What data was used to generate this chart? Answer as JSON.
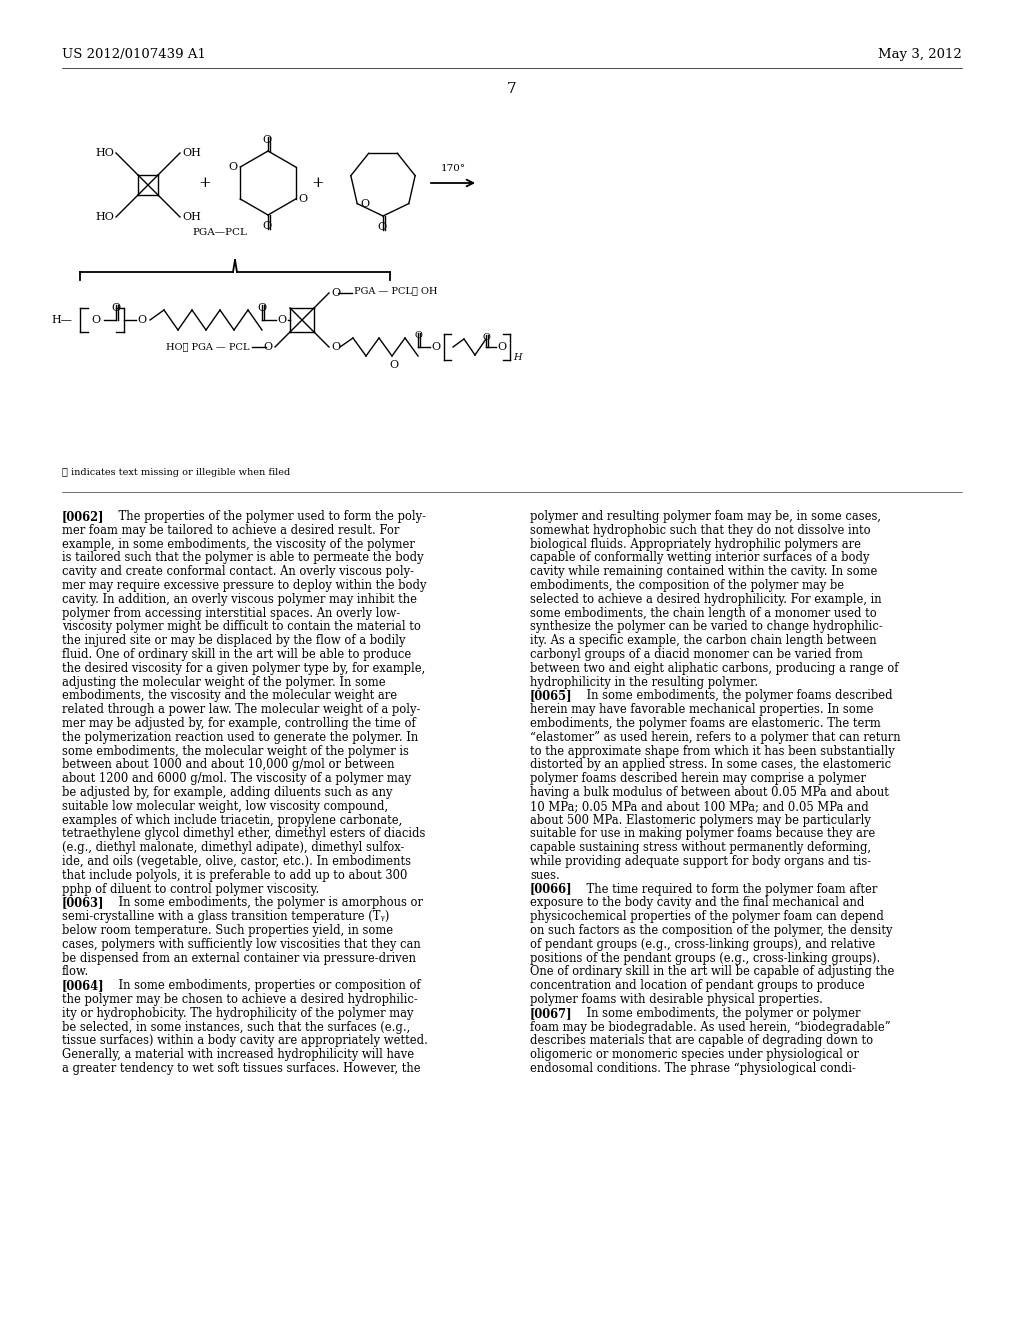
{
  "bg_color": "#ffffff",
  "header_left": "US 2012/0107439 A1",
  "header_right": "May 3, 2012",
  "page_number": "7",
  "left_col_text": "[0062] The properties of the polymer used to form the poly-\nmer foam may be tailored to achieve a desired result. For\nexample, in some embodiments, the viscosity of the polymer\nis tailored such that the polymer is able to permeate the body\ncavity and create conformal contact. An overly viscous poly-\nmer may require excessive pressure to deploy within the body\ncavity. In addition, an overly viscous polymer may inhibit the\npolymer from accessing interstitial spaces. An overly low-\nviscosity polymer might be difficult to contain the material to\nthe injured site or may be displaced by the flow of a bodily\nfluid. One of ordinary skill in the art will be able to produce\nthe desired viscosity for a given polymer type by, for example,\nadjusting the molecular weight of the polymer. In some\nembodiments, the viscosity and the molecular weight are\nrelated through a power law. The molecular weight of a poly-\nmer may be adjusted by, for example, controlling the time of\nthe polymerization reaction used to generate the polymer. In\nsome embodiments, the molecular weight of the polymer is\nbetween about 1000 and about 10,000 g/mol or between\nabout 1200 and 6000 g/mol. The viscosity of a polymer may\nbe adjusted by, for example, adding diluents such as any\nsuitable low molecular weight, low viscosity compound,\nexamples of which include triacetin, propylene carbonate,\ntetraethylene glycol dimethyl ether, dimethyl esters of diacids\n(e.g., diethyl malonate, dimethyl adipate), dimethyl sulfox-\nide, and oils (vegetable, olive, castor, etc.). In embodiments\nthat include polyols, it is preferable to add up to about 300\npphp of diluent to control polymer viscosity.\n[0063] In some embodiments, the polymer is amorphous or\nsemi-crystalline with a glass transition temperature (Tᵧ)\nbelow room temperature. Such properties yield, in some\ncases, polymers with sufficiently low viscosities that they can\nbe dispensed from an external container via pressure-driven\nflow.\n[0064] In some embodiments, properties or composition of\nthe polymer may be chosen to achieve a desired hydrophilic-\nity or hydrophobicity. The hydrophilicity of the polymer may\nbe selected, in some instances, such that the surfaces (e.g.,\ntissue surfaces) within a body cavity are appropriately wetted.\nGenerally, a material with increased hydrophilicity will have\na greater tendency to wet soft tissues surfaces. However, the",
  "right_col_text": "polymer and resulting polymer foam may be, in some cases,\nsomewhat hydrophobic such that they do not dissolve into\nbiological fluids. Appropriately hydrophilic polymers are\ncapable of conformally wetting interior surfaces of a body\ncavity while remaining contained within the cavity. In some\nembodiments, the composition of the polymer may be\nselected to achieve a desired hydrophilicity. For example, in\nsome embodiments, the chain length of a monomer used to\nsynthesize the polymer can be varied to change hydrophilic-\nity. As a specific example, the carbon chain length between\ncarbonyl groups of a diacid monomer can be varied from\nbetween two and eight aliphatic carbons, producing a range of\nhydrophilicity in the resulting polymer.\n[0065] In some embodiments, the polymer foams described\nherein may have favorable mechanical properties. In some\nembodiments, the polymer foams are elastomeric. The term\n“elastomer” as used herein, refers to a polymer that can return\nto the approximate shape from which it has been substantially\ndistorted by an applied stress. In some cases, the elastomeric\npolymer foams described herein may comprise a polymer\nhaving a bulk modulus of between about 0.05 MPa and about\n10 MPa; 0.05 MPa and about 100 MPa; and 0.05 MPa and\nabout 500 MPa. Elastomeric polymers may be particularly\nsuitable for use in making polymer foams because they are\ncapable sustaining stress without permanently deforming,\nwhile providing adequate support for body organs and tis-\nsues.\n[0066] The time required to form the polymer foam after\nexposure to the body cavity and the final mechanical and\nphysicochemical properties of the polymer foam can depend\non such factors as the composition of the polymer, the density\nof pendant groups (e.g., cross-linking groups), and relative\npositions of the pendant groups (e.g., cross-linking groups).\nOne of ordinary skill in the art will be capable of adjusting the\nconcentration and location of pendant groups to produce\npolymer foams with desirable physical properties.\n[0067] In some embodiments, the polymer or polymer\nfoam may be biodegradable. As used herein, “biodegradable”\ndescribes materials that are capable of degrading down to\noligomeric or monomeric species under physiological or\nendosomal conditions. The phrase “physiological condi-"
}
